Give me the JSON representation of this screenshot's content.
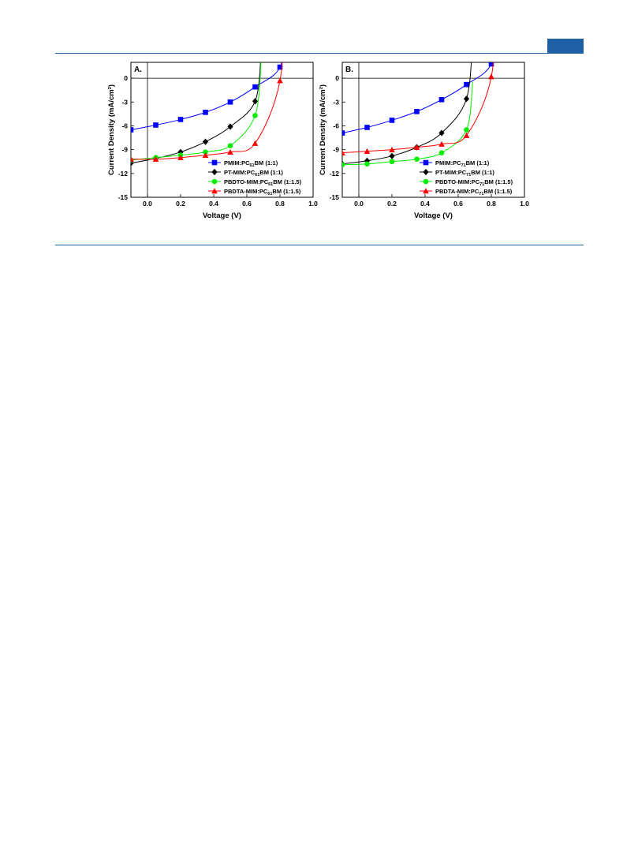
{
  "colors": {
    "page_rule": "#1f5fa3",
    "blue": "#0000ff",
    "black": "#000000",
    "green": "#00ee00",
    "red": "#ff0000"
  },
  "chart_data": [
    {
      "type": "line",
      "panel_label": "A.",
      "xlabel": "Voltage (V)",
      "ylabel": "Current Density (mA/cm²)",
      "xlim": [
        -0.1,
        1.0
      ],
      "ylim": [
        -15,
        2
      ],
      "xticks": [
        "0.0",
        "0.2",
        "0.4",
        "0.6",
        "0.8",
        "1.0"
      ],
      "yticks": [
        "0",
        "-3",
        "-6",
        "-9",
        "-12",
        "-15"
      ],
      "legend_position": "bottom-right",
      "series": [
        {
          "name": "PMIM:PC61BM (1:1)",
          "sub": "61",
          "label_pre": "PMIM:PC",
          "label_post": "BM (1:1)",
          "color": "#0000ff",
          "marker": "square",
          "x": [
            -0.1,
            0.05,
            0.2,
            0.35,
            0.5,
            0.65,
            0.8
          ],
          "y": [
            -6.5,
            -5.9,
            -5.2,
            -4.3,
            -3.0,
            -1.1,
            1.4
          ]
        },
        {
          "name": "PT-MIM:PC61BM (1:1)",
          "sub": "61",
          "label_pre": "PT-MIM:PC",
          "label_post": "BM (1:1)",
          "color": "#000000",
          "marker": "diamond",
          "x": [
            -0.1,
            0.05,
            0.2,
            0.35,
            0.5,
            0.65
          ],
          "y": [
            -10.7,
            -10.1,
            -9.3,
            -8.0,
            -6.1,
            -2.9
          ]
        },
        {
          "name": "PBDTO-MIM:PC61BM (1:1.5)",
          "sub": "61",
          "label_pre": "PBDTO-MIM:PC",
          "label_post": "BM (1:1.5)",
          "color": "#00ee00",
          "marker": "circle",
          "x": [
            -0.1,
            0.05,
            0.2,
            0.35,
            0.5,
            0.65
          ],
          "y": [
            -10.3,
            -10.0,
            -9.7,
            -9.3,
            -8.5,
            -4.7
          ]
        },
        {
          "name": "PBDTA-MIM:PC61BM (1:1.5)",
          "sub": "61",
          "label_pre": "PBDTA-MIM:PC",
          "label_post": "BM (1:1.5)",
          "color": "#ff0000",
          "marker": "triangle",
          "x": [
            -0.1,
            0.05,
            0.2,
            0.35,
            0.5,
            0.65,
            0.8
          ],
          "y": [
            -10.2,
            -10.2,
            -10.0,
            -9.7,
            -9.3,
            -8.2,
            -0.3
          ]
        }
      ]
    },
    {
      "type": "line",
      "panel_label": "B.",
      "xlabel": "Voltage (V)",
      "ylabel": "Current Density (mA/cm²)",
      "xlim": [
        -0.1,
        1.0
      ],
      "ylim": [
        -15,
        2
      ],
      "xticks": [
        "0.0",
        "0.2",
        "0.4",
        "0.6",
        "0.8",
        "1.0"
      ],
      "yticks": [
        "0",
        "-3",
        "-6",
        "-9",
        "-12",
        "-15"
      ],
      "legend_position": "bottom-right",
      "series": [
        {
          "name": "PMIM:PC71BM (1:1)",
          "sub": "71",
          "label_pre": "PMIM:PC",
          "label_post": "BM (1:1)",
          "color": "#0000ff",
          "marker": "square",
          "x": [
            -0.1,
            0.05,
            0.2,
            0.35,
            0.5,
            0.65,
            0.8
          ],
          "y": [
            -6.9,
            -6.2,
            -5.3,
            -4.2,
            -2.7,
            -0.8,
            1.8
          ]
        },
        {
          "name": "PT-MIM:PC71BM (1:1)",
          "sub": "71",
          "label_pre": "PT-MIM:PC",
          "label_post": "BM (1:1)",
          "color": "#000000",
          "marker": "diamond",
          "x": [
            -0.1,
            0.05,
            0.2,
            0.35,
            0.5,
            0.65
          ],
          "y": [
            -10.8,
            -10.4,
            -9.8,
            -8.7,
            -6.9,
            -2.6
          ]
        },
        {
          "name": "PBDTO-MIM:PC71BM (1:1.5)",
          "sub": "71",
          "label_pre": "PBDTO-MIM:PC",
          "label_post": "BM (1:1.5)",
          "color": "#00ee00",
          "marker": "circle",
          "x": [
            -0.1,
            0.05,
            0.2,
            0.35,
            0.5,
            0.65
          ],
          "y": [
            -10.9,
            -10.8,
            -10.5,
            -10.2,
            -9.4,
            -6.5
          ]
        },
        {
          "name": "PBDTA-MIM:PC71BM (1:1.5)",
          "sub": "71",
          "label_pre": "PBDTA-MIM:PC",
          "label_post": "BM (1:1.5)",
          "color": "#ff0000",
          "marker": "triangle",
          "x": [
            -0.1,
            0.05,
            0.2,
            0.35,
            0.5,
            0.65,
            0.8
          ],
          "y": [
            -9.4,
            -9.2,
            -9.0,
            -8.7,
            -8.3,
            -7.2,
            0.2
          ]
        }
      ]
    }
  ]
}
